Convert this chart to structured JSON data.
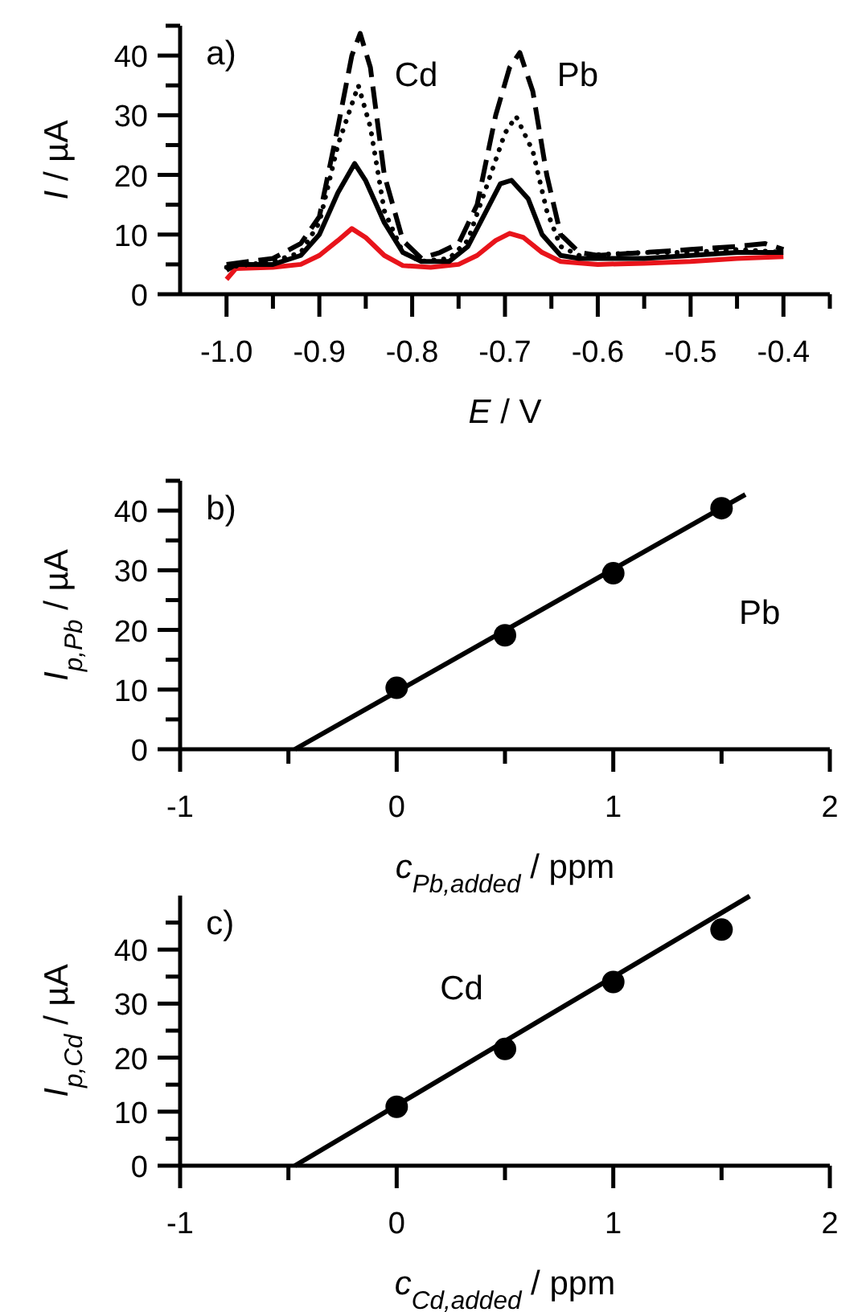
{
  "chart_data": [
    {
      "type": "line",
      "xlabel": "E / V",
      "ylabel": "I / µA",
      "xlim": [
        -1.05,
        -0.35
      ],
      "ylim": [
        0,
        45
      ],
      "xticks": [
        {
          "value": -1.0,
          "label": "-1.0"
        },
        {
          "value": -0.95,
          "label": null
        },
        {
          "value": -0.9,
          "label": "-0.9"
        },
        {
          "value": -0.85,
          "label": null
        },
        {
          "value": -0.8,
          "label": "-0.8"
        },
        {
          "value": -0.75,
          "label": null
        },
        {
          "value": -0.7,
          "label": "-0.7"
        },
        {
          "value": -0.65,
          "label": null
        },
        {
          "value": -0.6,
          "label": "-0.6"
        },
        {
          "value": -0.55,
          "label": null
        },
        {
          "value": -0.5,
          "label": "-0.5"
        },
        {
          "value": -0.45,
          "label": null
        },
        {
          "value": -0.4,
          "label": "-0.4"
        },
        {
          "value": -0.35,
          "label": null
        }
      ],
      "yticks": [
        0,
        {
          "value": 5,
          "label": null
        },
        10,
        {
          "value": 15,
          "label": null
        },
        20,
        {
          "value": 25,
          "label": null
        },
        30,
        {
          "value": 35,
          "label": null
        },
        40,
        {
          "value": 45,
          "label": null
        }
      ],
      "series": [
        {
          "color": "#e8141b",
          "line_style": "solid",
          "x": [
            -1.0,
            -0.99,
            -0.95,
            -0.92,
            -0.9,
            -0.88,
            -0.865,
            -0.85,
            -0.83,
            -0.81,
            -0.78,
            -0.75,
            -0.73,
            -0.71,
            -0.695,
            -0.68,
            -0.66,
            -0.64,
            -0.6,
            -0.55,
            -0.5,
            -0.45,
            -0.4
          ],
          "values": [
            2.5,
            4.3,
            4.5,
            5,
            6.5,
            9,
            11,
            9.5,
            6.5,
            4.8,
            4.5,
            5,
            6.5,
            9,
            10.2,
            9.5,
            7,
            5.5,
            5,
            5.2,
            5.5,
            6,
            6.3
          ]
        },
        {
          "color": "#000000",
          "line_style": "solid",
          "x": [
            -1.0,
            -0.99,
            -0.95,
            -0.92,
            -0.9,
            -0.88,
            -0.862,
            -0.85,
            -0.83,
            -0.81,
            -0.79,
            -0.76,
            -0.74,
            -0.72,
            -0.705,
            -0.693,
            -0.675,
            -0.66,
            -0.64,
            -0.62,
            -0.55,
            -0.5,
            -0.45,
            -0.4
          ],
          "values": [
            4,
            5,
            5,
            6.5,
            10,
            17,
            21.9,
            19,
            12,
            7,
            5.5,
            5.5,
            8,
            14,
            18.5,
            19.1,
            16,
            10,
            6.5,
            6,
            6,
            6.5,
            7,
            7
          ]
        },
        {
          "color": "#000000",
          "line_style": "dotted",
          "x": [
            -1.0,
            -0.95,
            -0.92,
            -0.9,
            -0.88,
            -0.858,
            -0.845,
            -0.83,
            -0.81,
            -0.79,
            -0.76,
            -0.74,
            -0.72,
            -0.7,
            -0.688,
            -0.67,
            -0.655,
            -0.64,
            -0.62,
            -0.55,
            -0.5,
            -0.45,
            -0.4
          ],
          "values": [
            4.5,
            5.5,
            7,
            12,
            25,
            35,
            28,
            14,
            7,
            5.5,
            6,
            9,
            18,
            27,
            29.8,
            24,
            14,
            8,
            6.5,
            7,
            7,
            7.5,
            7
          ]
        },
        {
          "color": "#000000",
          "line_style": "dashed",
          "x": [
            -1.0,
            -0.95,
            -0.92,
            -0.9,
            -0.88,
            -0.865,
            -0.856,
            -0.845,
            -0.83,
            -0.81,
            -0.79,
            -0.77,
            -0.75,
            -0.73,
            -0.71,
            -0.695,
            -0.684,
            -0.67,
            -0.655,
            -0.64,
            -0.62,
            -0.6,
            -0.55,
            -0.5,
            -0.45,
            -0.42,
            -0.4
          ],
          "values": [
            5,
            6,
            8.5,
            13,
            28,
            40,
            43.7,
            38,
            20,
            9,
            6,
            7,
            8.5,
            15,
            30,
            38,
            40.5,
            34,
            20,
            10,
            7,
            6.5,
            7,
            7.5,
            8,
            8.5,
            7.5
          ]
        }
      ],
      "annotations": [
        "a)",
        "Cd",
        "Pb"
      ]
    },
    {
      "type": "scatter",
      "xlabel": "c$_{Pb,added}$ / ppm",
      "ylabel": "I$_{p,Pb}$ / µA",
      "xlim": [
        -1,
        2
      ],
      "ylim": [
        0,
        45
      ],
      "xticks": [
        -1,
        {
          "value": -0.5,
          "label": null
        },
        0,
        {
          "value": 0.5,
          "label": null
        },
        1,
        {
          "value": 1.5,
          "label": null
        },
        2
      ],
      "yticks": [
        0,
        {
          "value": 5,
          "label": null
        },
        10,
        {
          "value": 15,
          "label": null
        },
        20,
        {
          "value": 25,
          "label": null
        },
        30,
        {
          "value": 35,
          "label": null
        },
        40,
        {
          "value": 45,
          "label": null
        }
      ],
      "series": [
        {
          "color": "#000000",
          "marker": "circle",
          "x": [
            0,
            0.5,
            1,
            1.5
          ],
          "values": [
            10.3,
            19.1,
            29.5,
            40.4
          ]
        },
        {
          "type": "line",
          "color": "#000000",
          "line_style": "solid",
          "x": [
            -0.47,
            1.61
          ],
          "values": [
            0,
            42.7
          ]
        }
      ],
      "annotations": [
        "b)",
        "Pb"
      ]
    },
    {
      "type": "scatter",
      "xlabel": "c$_{Cd,added}$ / ppm",
      "ylabel": "I$_{p,Cd}$ / µA",
      "xlim": [
        -1,
        2
      ],
      "ylim": [
        0,
        50
      ],
      "xticks": [
        -1,
        {
          "value": -0.5,
          "label": null
        },
        0,
        {
          "value": 0.5,
          "label": null
        },
        1,
        {
          "value": 1.5,
          "label": null
        },
        2
      ],
      "yticks": [
        0,
        {
          "value": 5,
          "label": null
        },
        10,
        {
          "value": 15,
          "label": null
        },
        20,
        {
          "value": 25,
          "label": null
        },
        30,
        {
          "value": 35,
          "label": null
        },
        40,
        {
          "value": 45,
          "label": null
        }
      ],
      "series": [
        {
          "color": "#000000",
          "marker": "circle",
          "x": [
            0,
            0.5,
            1,
            1.5
          ],
          "values": [
            10.9,
            21.6,
            34.0,
            43.7
          ]
        },
        {
          "type": "line",
          "color": "#000000",
          "line_style": "solid",
          "x": [
            -0.47,
            1.63
          ],
          "values": [
            0,
            49.9
          ]
        }
      ],
      "annotations": [
        "c)",
        "Cd"
      ]
    }
  ]
}
